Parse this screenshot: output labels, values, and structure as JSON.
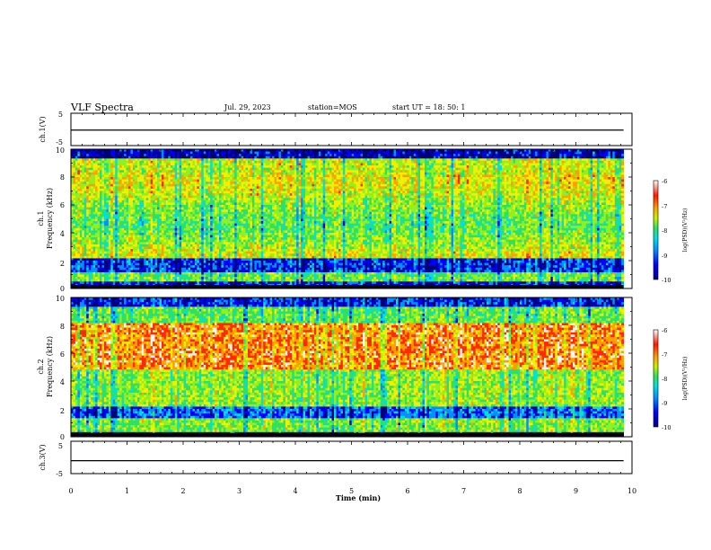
{
  "header": {
    "title": "VLF Spectra",
    "date": "Jul. 29, 2023",
    "station": "station=MOS",
    "start": "start UT =  18: 50: 1"
  },
  "chart_data": [
    {
      "type": "line",
      "panel": "ch1-waveform",
      "ylabel": "ch.1(V)",
      "ylim": [
        -5,
        5
      ],
      "yticks": [
        "5",
        "-5"
      ],
      "x": [
        0,
        9.85
      ],
      "values": [
        -0.2,
        -0.2
      ]
    },
    {
      "type": "heatmap",
      "panel": "ch1-spectrogram",
      "ylabel_top": "ch.1",
      "ylabel": "Frequency (kHz)",
      "ylim": [
        0,
        10
      ],
      "yticks": [
        "0",
        "2",
        "4",
        "6",
        "8",
        "10"
      ],
      "colorbar": {
        "label": "log(PSD)(V²/Hz)",
        "range": [
          -10,
          -6
        ],
        "ticks": [
          "-6",
          "-7",
          "-8",
          "-9",
          "-10"
        ]
      }
    },
    {
      "type": "heatmap",
      "panel": "ch2-spectrogram",
      "ylabel_top": "ch.2",
      "ylabel": "Frequency (kHz)",
      "ylim": [
        0,
        10
      ],
      "yticks": [
        "0",
        "2",
        "4",
        "6",
        "8",
        "10"
      ],
      "colorbar": {
        "label": "log(PSD)(V²/Hz)",
        "range": [
          -10,
          -6
        ],
        "ticks": [
          "-6",
          "-7",
          "-8",
          "-9",
          "-10"
        ]
      }
    },
    {
      "type": "line",
      "panel": "ch3-waveform",
      "ylabel": "ch.3(V)",
      "ylim": [
        -5,
        5
      ],
      "yticks": [
        "5",
        "-5"
      ],
      "x": [
        0,
        9.85
      ],
      "values": [
        -1.0,
        -1.0
      ]
    }
  ],
  "xaxis": {
    "label": "Time (min)",
    "range": [
      0,
      10
    ],
    "ticks": [
      "0",
      "1",
      "2",
      "3",
      "4",
      "5",
      "6",
      "7",
      "8",
      "9",
      "10"
    ]
  },
  "colormap": [
    "#00007a",
    "#0000ff",
    "#0090ff",
    "#00e0e0",
    "#30e060",
    "#90f020",
    "#f0f000",
    "#ffa000",
    "#ff2a00",
    "#f5f5f5"
  ]
}
